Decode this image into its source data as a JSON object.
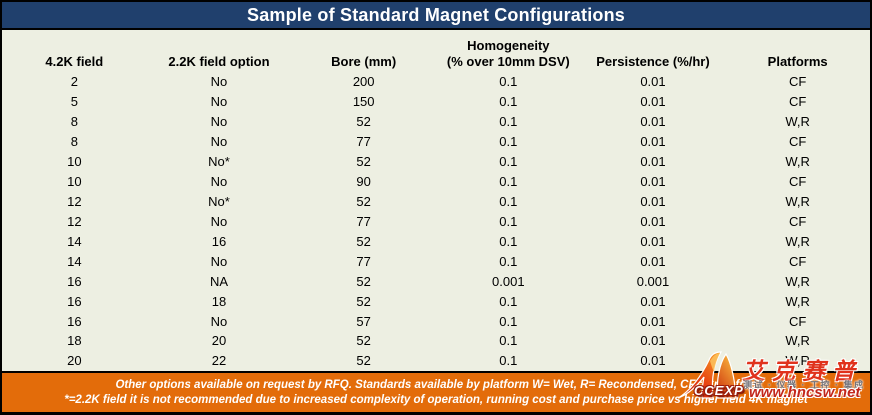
{
  "title": "Sample of Standard Magnet Configurations",
  "table": {
    "homogeneity_group_label": "Homogeneity",
    "columns": [
      "4.2K field",
      "2.2K field option",
      "Bore (mm)",
      "(% over 10mm DSV)",
      "Persistence (%/hr)",
      "Platforms"
    ],
    "rows": [
      [
        "2",
        "No",
        "200",
        "0.1",
        "0.01",
        "CF"
      ],
      [
        "5",
        "No",
        "150",
        "0.1",
        "0.01",
        "CF"
      ],
      [
        "8",
        "No",
        "52",
        "0.1",
        "0.01",
        "W,R"
      ],
      [
        "8",
        "No",
        "77",
        "0.1",
        "0.01",
        "CF"
      ],
      [
        "10",
        "No*",
        "52",
        "0.1",
        "0.01",
        "W,R"
      ],
      [
        "10",
        "No",
        "90",
        "0.1",
        "0.01",
        "CF"
      ],
      [
        "12",
        "No*",
        "52",
        "0.1",
        "0.01",
        "W,R"
      ],
      [
        "12",
        "No",
        "77",
        "0.1",
        "0.01",
        "CF"
      ],
      [
        "14",
        "16",
        "52",
        "0.1",
        "0.01",
        "W,R"
      ],
      [
        "14",
        "No",
        "77",
        "0.1",
        "0.01",
        "CF"
      ],
      [
        "16",
        "NA",
        "52",
        "0.001",
        "0.001",
        "W,R"
      ],
      [
        "16",
        "18",
        "52",
        "0.1",
        "0.01",
        "W,R"
      ],
      [
        "16",
        "No",
        "57",
        "0.1",
        "0.01",
        "CF"
      ],
      [
        "18",
        "20",
        "52",
        "0.1",
        "0.01",
        "W,R"
      ],
      [
        "20",
        "22",
        "52",
        "0.1",
        "0.01",
        "W,R"
      ]
    ]
  },
  "footer": {
    "line1": "Other options available on request by RFQ. Standards available by platform W= Wet, R= Recondensed, CF= Cryo-free",
    "line2": "*=2.2K field it is not recommended due to increased complexity of operation, running cost and purchase price vs higher field 4K magnet"
  },
  "watermark": {
    "logo_text": "CCEXP",
    "brand_cn": "艾克赛普",
    "tagline_cn": "测试 · 仪器 · 工控 · 集成",
    "website": "www.hncsw.net"
  },
  "colors": {
    "title_bg": "#20406D",
    "table_bg": "#EDEFE2",
    "footer_bg": "#E36C0A",
    "watermark_red": "#E0321C",
    "website_red": "#C3271B",
    "border_black": "#000000"
  }
}
